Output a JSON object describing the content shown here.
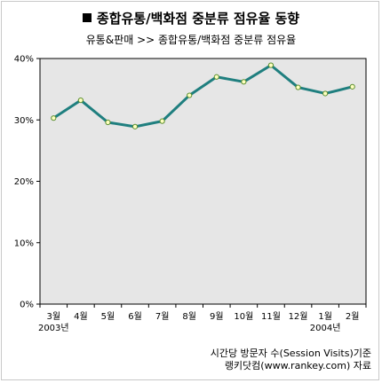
{
  "header": {
    "title": "종합유통/백화점 중분류 점유율 동향",
    "subtitle": "유통&판매 >> 종합유통/백화점 중분류 점유율"
  },
  "footer": {
    "note_line1": "시간당 방문자 수(Session Visits)기준",
    "note_line2": "랭키닷컴(www.rankey.com) 자료"
  },
  "colors": {
    "plot_background": "#e6e6e6",
    "line": "#1f7f7f",
    "marker_fill": "#ffffc0",
    "marker_stroke": "#5b8f30"
  },
  "chart_data": {
    "type": "line",
    "title": "종합유통/백화점 중분류 점유율 동향",
    "xlabel": "",
    "ylabel": "",
    "categories": [
      "3월",
      "4월",
      "5월",
      "6월",
      "7월",
      "8월",
      "9월",
      "10월",
      "11월",
      "12월",
      "1월",
      "2월"
    ],
    "year_labels": [
      {
        "category_index": 0,
        "label": "2003년"
      },
      {
        "category_index": 10,
        "label": "2004년"
      }
    ],
    "series": [
      {
        "values": [
          30.3,
          33.2,
          29.6,
          28.9,
          29.8,
          34.0,
          37.0,
          36.2,
          38.9,
          35.3,
          34.3,
          35.4
        ]
      }
    ],
    "ylim": [
      0,
      40
    ],
    "yticks": [
      0,
      10,
      20,
      30,
      40
    ],
    "ytick_labels": [
      "0%",
      "10%",
      "20%",
      "30%",
      "40%"
    ],
    "grid": false,
    "legend": "none"
  }
}
